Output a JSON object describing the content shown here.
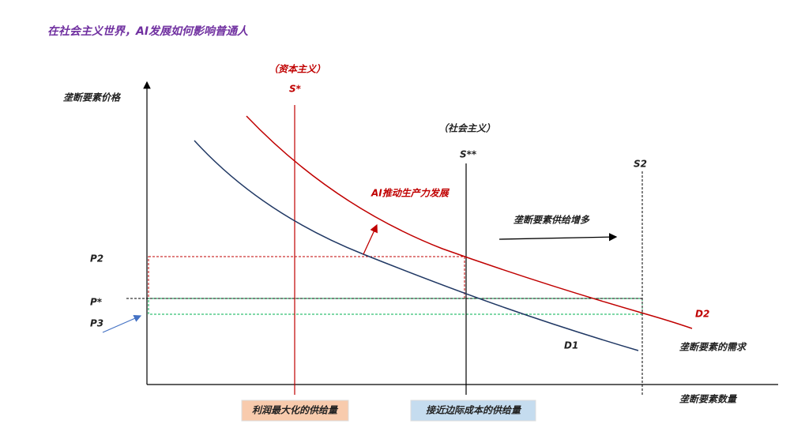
{
  "title": "在社会主义世界，AI发展如何影响普通人",
  "axes": {
    "y_label": "垄断要素价格",
    "x_label": "垄断要素数量"
  },
  "supply_lines": {
    "capitalism_note": "（资本主义）",
    "s_star": "S*",
    "socialism_note": "（社会主义）",
    "s_double_star": "S**",
    "s2": "S2"
  },
  "annotations": {
    "ai_growth": "AI推动生产力发展",
    "supply_increase": "垄断要素供给增多",
    "demand": "垄断要素的需求"
  },
  "prices": {
    "p2": "P2",
    "p_star": "P*",
    "p3": "P3"
  },
  "curves": {
    "d1": "D1",
    "d2": "D2"
  },
  "boxes": {
    "profit_max": "利润最大化的供给量",
    "marginal_cost": "接近边际成本的供给量"
  }
}
